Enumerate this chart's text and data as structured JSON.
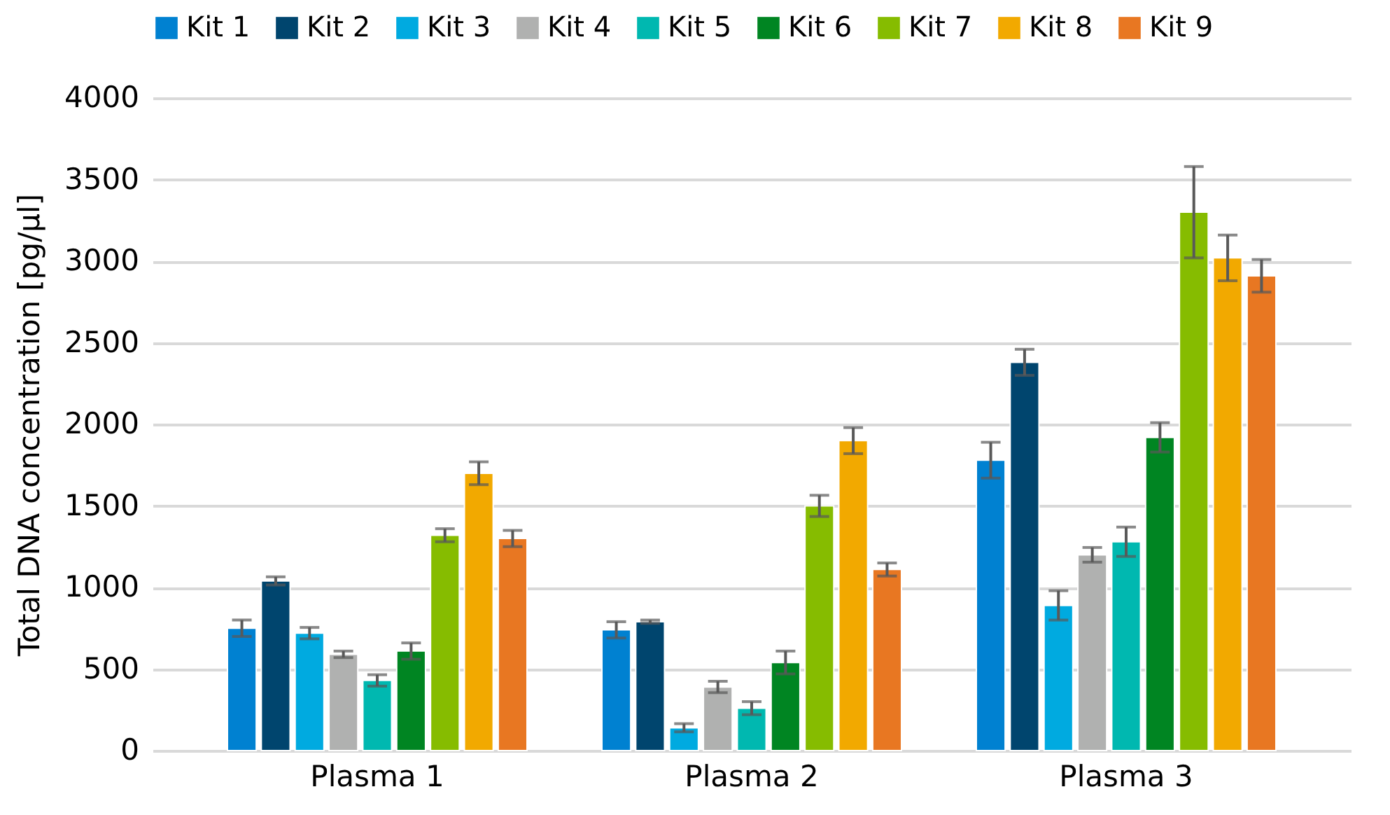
{
  "chart_data": {
    "type": "bar",
    "ylabel": "Total DNA concentration [pg/µl]",
    "categories": [
      "Plasma 1",
      "Plasma 2",
      "Plasma 3"
    ],
    "series": [
      {
        "name": "Kit 1",
        "color": "#0081d1",
        "values": [
          750,
          740,
          1780
        ],
        "errors": [
          50,
          50,
          110
        ]
      },
      {
        "name": "Kit 2",
        "color": "#00456e",
        "values": [
          1040,
          790,
          2380
        ],
        "errors": [
          25,
          10,
          80
        ]
      },
      {
        "name": "Kit 3",
        "color": "#00aae0",
        "values": [
          720,
          140,
          890
        ],
        "errors": [
          35,
          25,
          90
        ]
      },
      {
        "name": "Kit 4",
        "color": "#b0b1b0",
        "values": [
          590,
          390,
          1200
        ],
        "errors": [
          20,
          35,
          45
        ]
      },
      {
        "name": "Kit 5",
        "color": "#00b8b0",
        "values": [
          430,
          260,
          1280
        ],
        "errors": [
          35,
          40,
          90
        ]
      },
      {
        "name": "Kit 6",
        "color": "#008522",
        "values": [
          610,
          540,
          1920
        ],
        "errors": [
          50,
          70,
          90
        ]
      },
      {
        "name": "Kit 7",
        "color": "#86bc00",
        "values": [
          1320,
          1500,
          3300
        ],
        "errors": [
          40,
          65,
          280
        ]
      },
      {
        "name": "Kit 8",
        "color": "#f2a900",
        "values": [
          1700,
          1900,
          3020
        ],
        "errors": [
          70,
          80,
          140
        ]
      },
      {
        "name": "Kit 9",
        "color": "#e87722",
        "values": [
          1300,
          1110,
          2910
        ],
        "errors": [
          50,
          40,
          100
        ]
      }
    ],
    "ylim": [
      0,
      4000
    ],
    "yticks": [
      0,
      500,
      1000,
      1500,
      2000,
      2500,
      3000,
      3500,
      4000
    ],
    "grid": "y",
    "legend": "top"
  }
}
